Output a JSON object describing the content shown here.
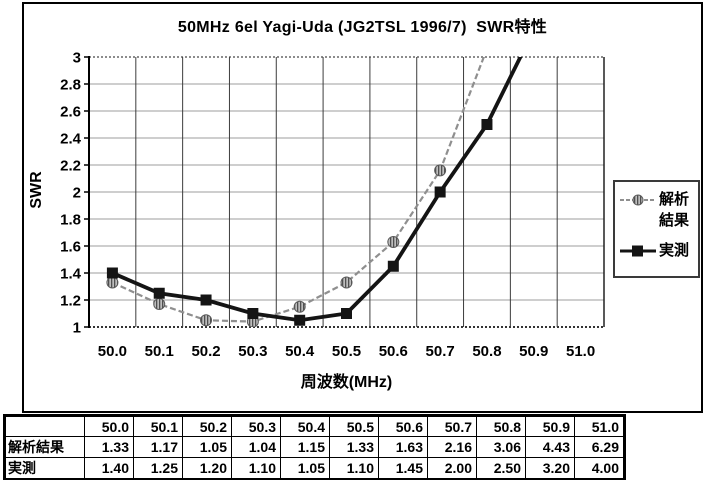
{
  "title": "50MHz 6el Yagi-Uda (JG2TSL 1996/7)  SWR特性",
  "chart_data": {
    "type": "line",
    "categories": [
      "50.0",
      "50.1",
      "50.2",
      "50.3",
      "50.4",
      "50.5",
      "50.6",
      "50.7",
      "50.8",
      "50.9",
      "51.0"
    ],
    "series": [
      {
        "name": "解析結果",
        "values": [
          1.33,
          1.17,
          1.05,
          1.04,
          1.15,
          1.33,
          1.63,
          2.16,
          3.06,
          4.43,
          6.29
        ],
        "color": "#8f8f8f",
        "line_style": "dashed",
        "marker": "striped-circle"
      },
      {
        "name": "実測",
        "values": [
          1.4,
          1.25,
          1.2,
          1.1,
          1.05,
          1.1,
          1.45,
          2.0,
          2.5,
          3.2,
          4.0
        ],
        "color": "#141414",
        "line_style": "solid",
        "marker": "square"
      }
    ],
    "xlabel": "周波数(MHz)",
    "ylabel": "SWR",
    "ylim": [
      1,
      3
    ],
    "ytick_labels": [
      "1",
      "1.2",
      "1.4",
      "1.6",
      "1.8",
      "2",
      "2.2",
      "2.4",
      "2.6",
      "2.8",
      "3"
    ],
    "grid": "both",
    "legend_position": "right-outside",
    "colors": {
      "grid_vertical": "#3c3c3c",
      "grid_horizontal": "#9c9c9c",
      "axis": "#000000"
    }
  },
  "table": {
    "corner_label": "",
    "column_headers": [
      "50.0",
      "50.1",
      "50.2",
      "50.3",
      "50.4",
      "50.5",
      "50.6",
      "50.7",
      "50.8",
      "50.9",
      "51.0"
    ],
    "rows": [
      {
        "label": "解析結果",
        "values": [
          "1.33",
          "1.17",
          "1.05",
          "1.04",
          "1.15",
          "1.33",
          "1.63",
          "2.16",
          "3.06",
          "4.43",
          "6.29"
        ]
      },
      {
        "label": "実測",
        "values": [
          "1.40",
          "1.25",
          "1.20",
          "1.10",
          "1.05",
          "1.10",
          "1.45",
          "2.00",
          "2.50",
          "3.20",
          "4.00"
        ]
      }
    ]
  }
}
